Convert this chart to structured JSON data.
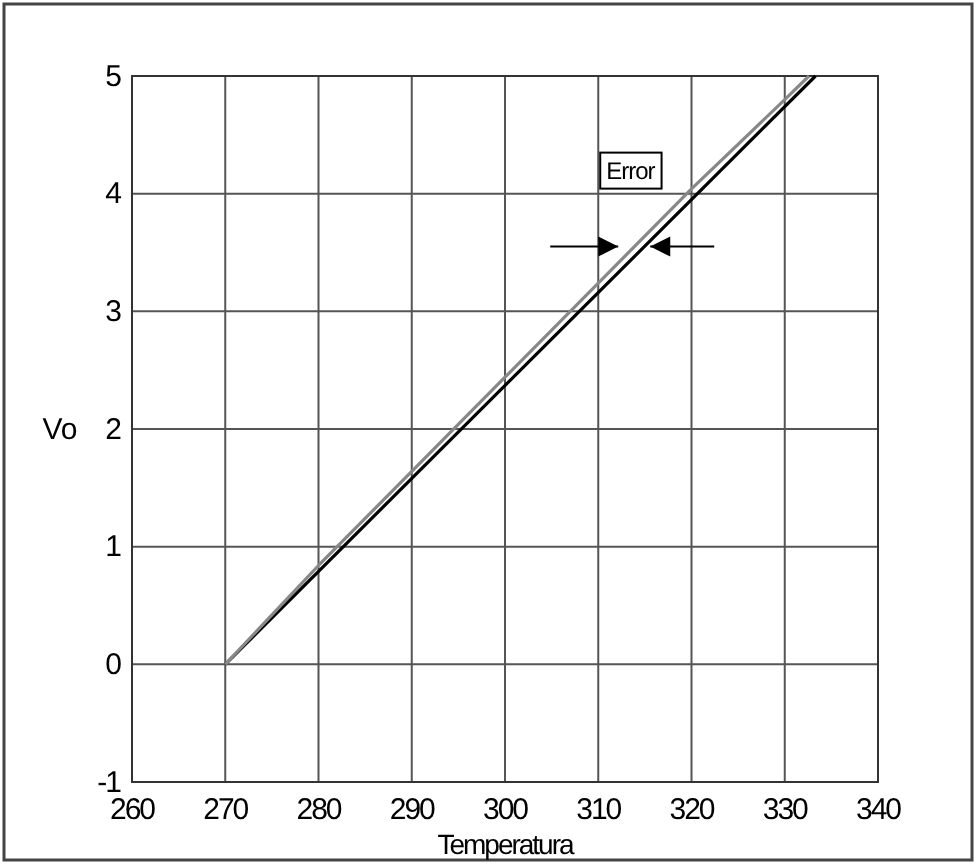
{
  "chart_data": {
    "type": "line",
    "xlabel": "Temperatura",
    "ylabel": "Vo",
    "xlim": [
      260,
      340
    ],
    "ylim": [
      -1,
      5
    ],
    "xticks": [
      260,
      270,
      280,
      290,
      300,
      310,
      320,
      330,
      340
    ],
    "yticks": [
      -1,
      0,
      1,
      2,
      3,
      4,
      5
    ],
    "grid": true,
    "series": [
      {
        "color": "#000000",
        "x": [
          270,
          333.3
        ],
        "values": [
          0,
          5
        ]
      },
      {
        "color": "#888888",
        "x": [
          270,
          280,
          290,
          300,
          310,
          320,
          330,
          332.6
        ],
        "values": [
          0,
          0.84,
          1.64,
          2.44,
          3.24,
          4.04,
          4.8,
          5
        ]
      }
    ],
    "annotations": [
      {
        "text": "Error",
        "x": 313,
        "y": 3.55
      }
    ]
  }
}
